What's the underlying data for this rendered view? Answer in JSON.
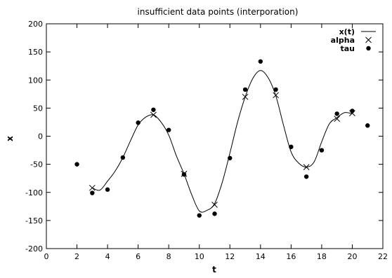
{
  "chart_data": {
    "type": "line",
    "title": "insufficient data points (interporation)",
    "xlabel": "t",
    "ylabel": "x",
    "xlim": [
      0,
      22
    ],
    "ylim": [
      -200,
      200
    ],
    "xticks": [
      0,
      2,
      4,
      6,
      8,
      10,
      12,
      14,
      16,
      18,
      20,
      22
    ],
    "yticks": [
      -200,
      -150,
      -100,
      -50,
      0,
      50,
      100,
      150,
      200
    ],
    "grid": false,
    "legend_position": "top-right",
    "legend": [
      "x(t)",
      "alpha",
      "tau"
    ],
    "series": [
      {
        "name": "x(t)",
        "style": "line",
        "x": [
          3,
          3.5,
          4,
          4.5,
          5,
          5.5,
          6,
          6.5,
          7,
          7.5,
          8,
          8.5,
          9,
          9.5,
          10,
          10.5,
          11,
          11.5,
          12,
          12.5,
          13,
          13.5,
          14,
          14.5,
          15,
          15.5,
          16,
          16.5,
          17,
          17.5,
          18,
          18.5,
          19,
          19.5,
          20
        ],
        "y": [
          -92,
          -96,
          -80,
          -62,
          -38,
          -8,
          20,
          34,
          38,
          25,
          2,
          -35,
          -67,
          -104,
          -133,
          -132,
          -120,
          -82,
          -30,
          25,
          70,
          103,
          117,
          104,
          72,
          20,
          -28,
          -48,
          -55,
          -46,
          -10,
          22,
          33,
          42,
          40
        ]
      },
      {
        "name": "alpha",
        "style": "cross",
        "x": [
          3,
          7,
          9,
          11,
          13,
          15,
          17,
          19,
          20
        ],
        "y": [
          -92,
          38,
          -67,
          -122,
          70,
          73,
          -55,
          31,
          41
        ]
      },
      {
        "name": "tau",
        "style": "dot",
        "x": [
          2,
          3,
          4,
          5,
          6,
          7,
          8,
          9,
          10,
          11,
          12,
          13,
          14,
          15,
          16,
          17,
          18,
          19,
          20,
          21
        ],
        "y": [
          -50,
          -101,
          -95,
          -38,
          24,
          47,
          11,
          -68,
          -141,
          -138,
          -39,
          83,
          133,
          83,
          -19,
          -72,
          -25,
          40,
          45,
          19
        ]
      }
    ]
  }
}
